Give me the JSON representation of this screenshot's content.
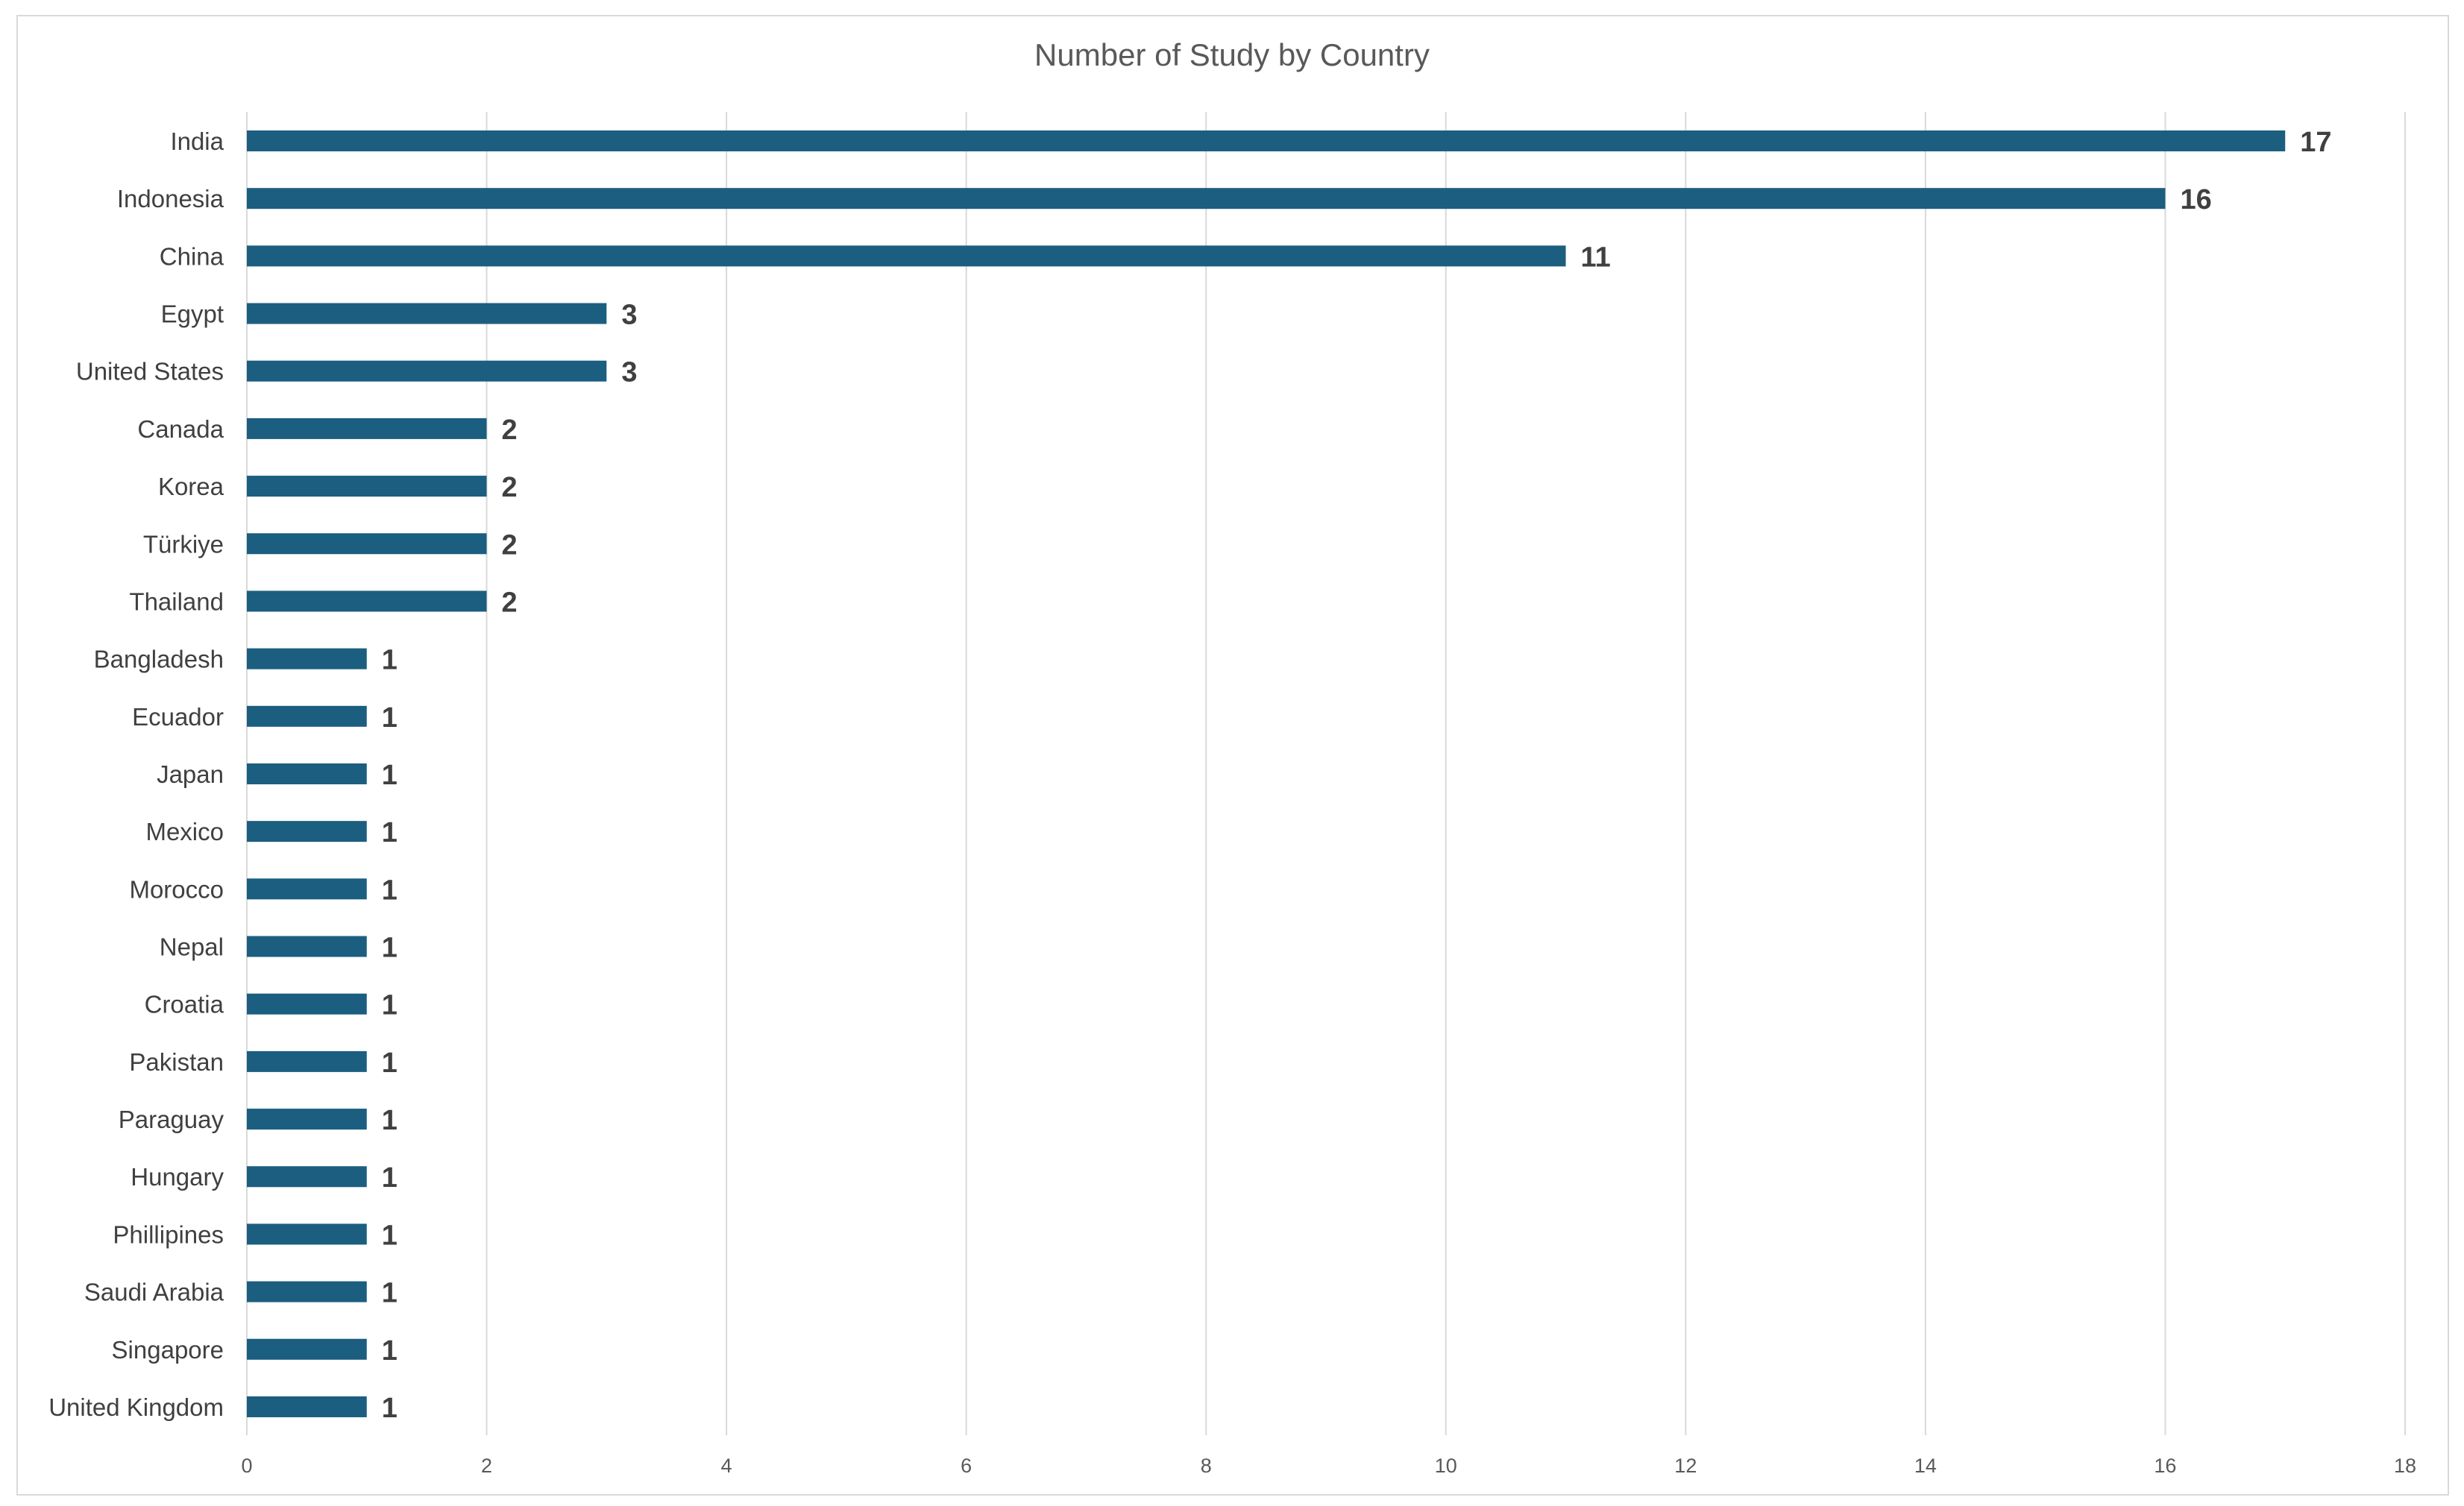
{
  "chart_data": {
    "type": "bar",
    "orientation": "horizontal",
    "title": "Number of Study by Country",
    "xlabel": "",
    "ylabel": "",
    "categories": [
      "India",
      "Indonesia",
      "China",
      "Egypt",
      "United States",
      "Canada",
      "Korea",
      "Türkiye",
      "Thailand",
      "Bangladesh",
      "Ecuador",
      "Japan",
      "Mexico",
      "Morocco",
      "Nepal",
      "Croatia",
      "Pakistan",
      "Paraguay",
      "Hungary",
      "Phillipines",
      "Saudi Arabia",
      "Singapore",
      "United Kingdom"
    ],
    "values": [
      17,
      16,
      11,
      3,
      3,
      2,
      2,
      2,
      2,
      1,
      1,
      1,
      1,
      1,
      1,
      1,
      1,
      1,
      1,
      1,
      1,
      1,
      1
    ],
    "xlim": [
      0,
      18
    ],
    "xticks": [
      0,
      2,
      4,
      6,
      8,
      10,
      12,
      14,
      16,
      18
    ],
    "grid": true,
    "data_labels": true,
    "legend": "none",
    "bar_color": "#1b5e80"
  }
}
